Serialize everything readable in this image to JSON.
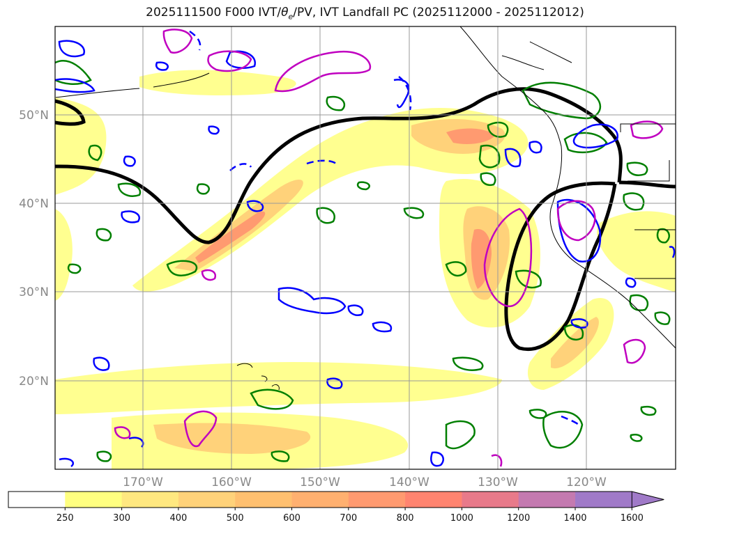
{
  "title_main": "2025111500 F000 IVT/",
  "title_theta": "θ",
  "title_sub": "e",
  "title_rest": "/PV, IVT Landfall PC (2025112000 - 2025112012)",
  "lat_labels": [
    "50°N",
    "40°N",
    "30°N",
    "20°N"
  ],
  "lon_labels": [
    "170°W",
    "160°W",
    "150°W",
    "140°W",
    "130°W",
    "120°W"
  ],
  "colorbar": {
    "ticks": [
      "250",
      "300",
      "400",
      "500",
      "600",
      "700",
      "800",
      "1000",
      "1200",
      "1400",
      "1600"
    ],
    "colors": [
      "#ffffff",
      "#ffff80",
      "#ffe880",
      "#ffd27a",
      "#ffc070",
      "#ffb070",
      "#ff9a70",
      "#ff8470",
      "#e87a8a",
      "#c47ab0",
      "#a07ac8"
    ],
    "extend": "max"
  },
  "contour_colors": {
    "ivt_fill_low": "#ffff90",
    "ivt_fill_mid": "#ffd27a",
    "ivt_fill_high": "#ff9a70",
    "landfall_pc": "#000000",
    "theta_e": "#007f00",
    "pv": "#0000ff",
    "magenta": "#c000c0"
  }
}
